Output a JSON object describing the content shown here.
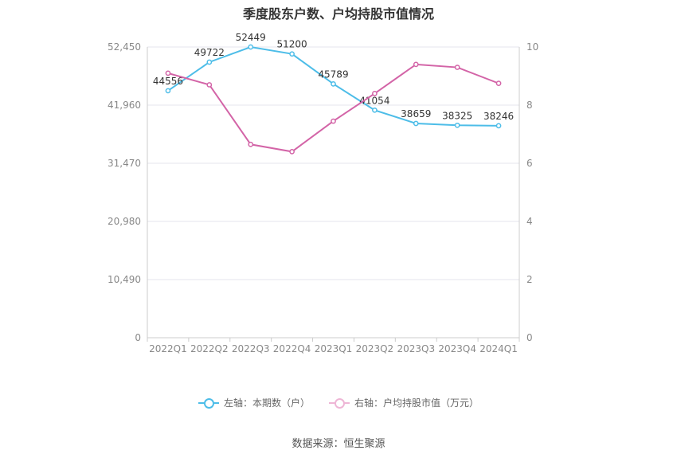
{
  "title": "季度股东户数、户均持股市值情况",
  "source": "数据来源：恒生聚源",
  "chart_data": {
    "type": "line",
    "categories": [
      "2022Q1",
      "2022Q2",
      "2022Q3",
      "2022Q4",
      "2023Q1",
      "2023Q2",
      "2023Q3",
      "2023Q4",
      "2024Q1"
    ],
    "left_axis": {
      "ylim": [
        0,
        52450
      ],
      "ticks": [
        "0",
        "10,490",
        "20,980",
        "31,470",
        "41,960",
        "52,450"
      ]
    },
    "right_axis": {
      "ylim": [
        0,
        10
      ],
      "ticks": [
        "0",
        "2",
        "4",
        "6",
        "8",
        "10"
      ]
    },
    "grid": true,
    "legend_position": "bottom",
    "series": [
      {
        "name": "左轴：本期数（户）",
        "axis": "left",
        "color": "#4dbde8",
        "values": [
          44556,
          49722,
          52449,
          51200,
          45789,
          41054,
          38659,
          38325,
          38246
        ],
        "labels": [
          "44556",
          "49722",
          "52449",
          "51200",
          "45789",
          "41054",
          "38659",
          "38325",
          "38246"
        ]
      },
      {
        "name": "右轴：户均持股市值（万元）",
        "axis": "right",
        "color": "#d364a7",
        "values": [
          9.1,
          8.7,
          6.65,
          6.4,
          7.45,
          8.4,
          9.4,
          9.3,
          8.75
        ]
      }
    ]
  }
}
